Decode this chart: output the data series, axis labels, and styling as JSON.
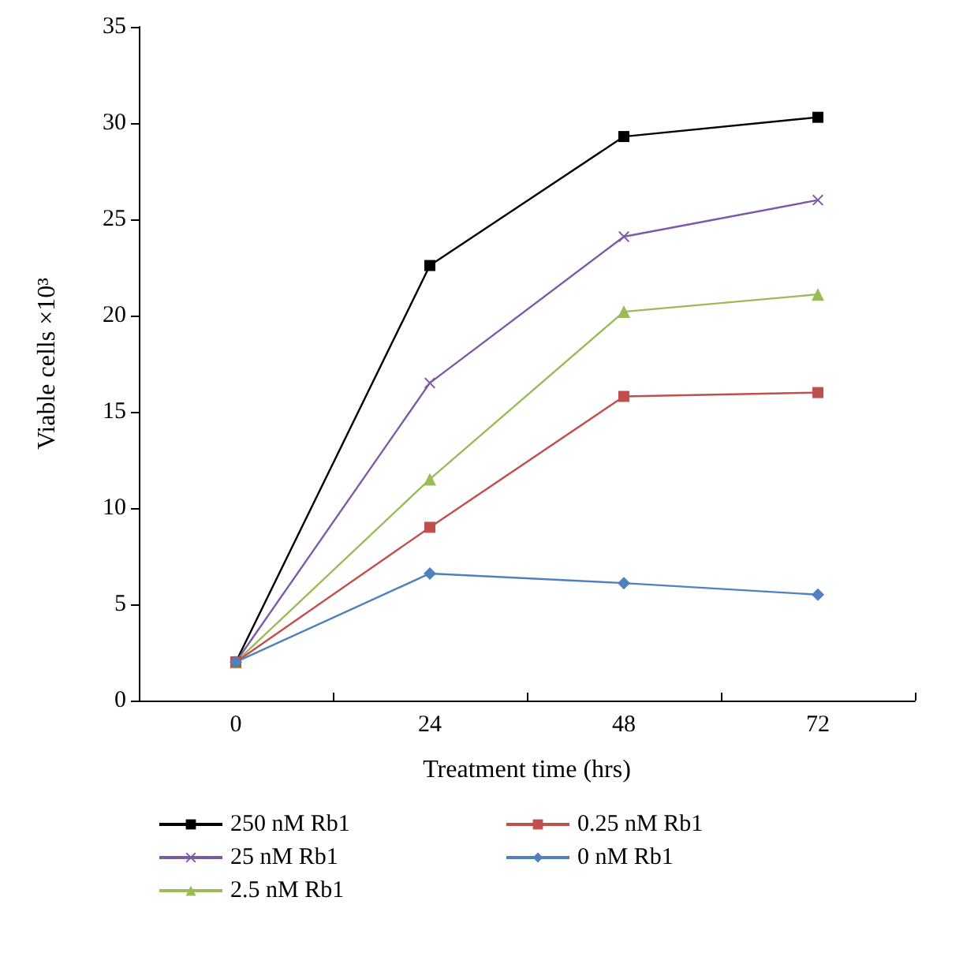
{
  "chart_data": {
    "type": "line",
    "xlabel": "Treatment time (hrs)",
    "ylabel": "Viable cells ×10³",
    "categories": [
      "0",
      "24",
      "48",
      "72"
    ],
    "ylim": [
      0,
      35
    ],
    "yticks": [
      0,
      5,
      10,
      15,
      20,
      25,
      30,
      35
    ],
    "grid": false,
    "legend": "bottom",
    "line_style": "solid",
    "series": [
      {
        "name": "250 nM Rb1",
        "color": "#000000",
        "marker": "square",
        "values": [
          2,
          22.6,
          29.3,
          30.3
        ]
      },
      {
        "name": "25 nM Rb1",
        "color": "#7b5aa6",
        "marker": "cross",
        "values": [
          2,
          16.5,
          24.1,
          26.0
        ]
      },
      {
        "name": "2.5 nM Rb1",
        "color": "#9bbb59",
        "marker": "triangle",
        "values": [
          2,
          11.5,
          20.2,
          21.1
        ]
      },
      {
        "name": "0.25 nM Rb1",
        "color": "#c0504d",
        "marker": "square",
        "values": [
          2,
          9.0,
          15.8,
          16.0
        ]
      },
      {
        "name": "0 nM Rb1",
        "color": "#4f81bd",
        "marker": "diamond",
        "values": [
          2,
          6.6,
          6.1,
          5.5
        ]
      }
    ]
  }
}
